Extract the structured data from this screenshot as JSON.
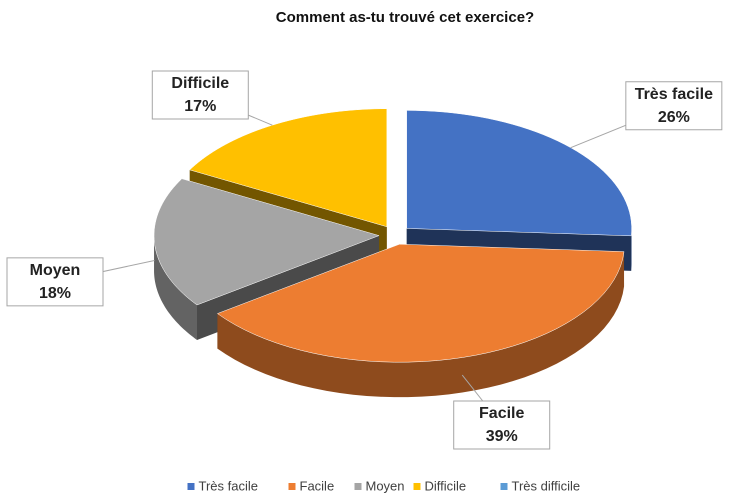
{
  "chart_data": {
    "type": "pie3d",
    "title": "Comment as-tu trouvé cet exercice?",
    "categories": [
      "Très facile",
      "Facile",
      "Moyen",
      "Difficile",
      "Très difficile"
    ],
    "values": [
      26,
      39,
      18,
      17,
      0
    ],
    "value_labels": [
      "26%",
      "39%",
      "18%",
      "17%",
      null
    ],
    "colors": [
      "#4472c4",
      "#ed7d31",
      "#a5a5a5",
      "#ffc000",
      "#5b9bd5"
    ],
    "legend": "bottom"
  }
}
